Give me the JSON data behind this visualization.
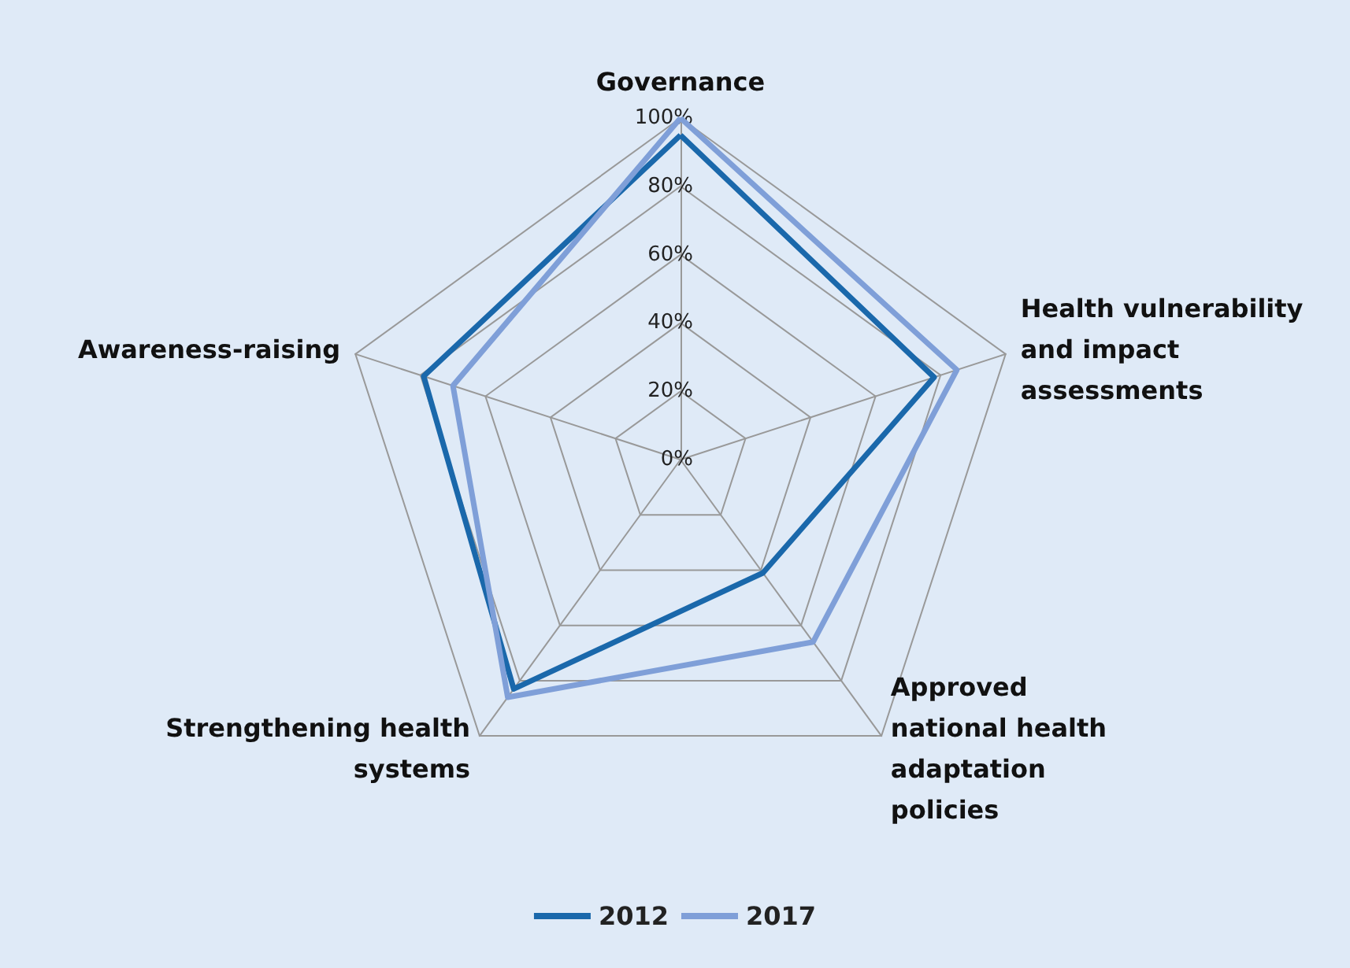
{
  "chart_data": {
    "type": "radar",
    "categories": [
      "Governance",
      "Health vulnerability and impact assessments",
      "Approved national health adaptation policies",
      "Strengthening health systems",
      "Awareness-raising"
    ],
    "series": [
      {
        "name": "2012",
        "color": "#1a68ab",
        "values": [
          95,
          78,
          41,
          83,
          79
        ]
      },
      {
        "name": "2017",
        "color": "#7f9fd8",
        "values": [
          100,
          85,
          66,
          86,
          70
        ]
      }
    ],
    "ylim": [
      0,
      100
    ],
    "yticks": [
      {
        "value": 0,
        "label": "0%"
      },
      {
        "value": 20,
        "label": "20%"
      },
      {
        "value": 40,
        "label": "40%"
      },
      {
        "value": 60,
        "label": "60%"
      },
      {
        "value": 80,
        "label": "80%"
      },
      {
        "value": 100,
        "label": "100%"
      }
    ],
    "legend": "bottom",
    "marker": "none",
    "line_style": "solid"
  }
}
